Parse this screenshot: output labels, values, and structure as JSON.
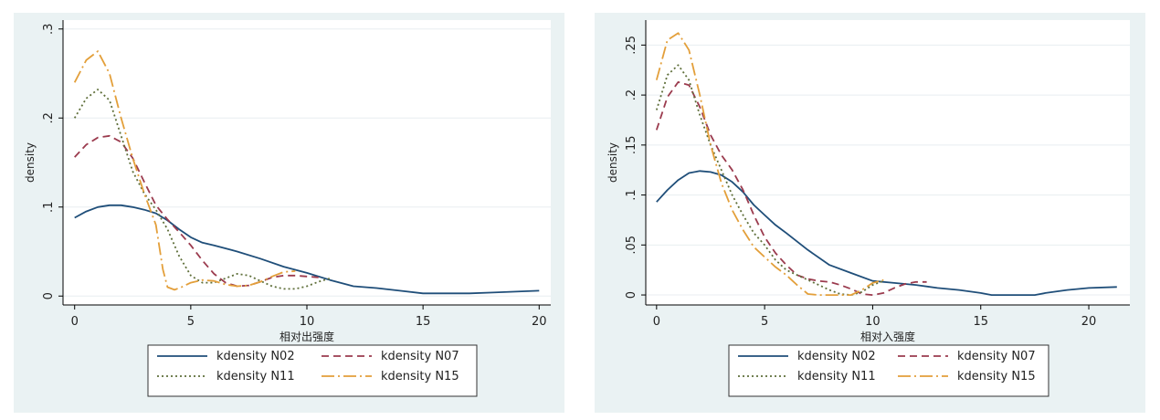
{
  "chart_data": [
    {
      "type": "line",
      "title": "",
      "xlabel": "相对出强度",
      "ylabel": "density",
      "xlim": [
        -0.5,
        20.5
      ],
      "ylim": [
        -0.01,
        0.31
      ],
      "x_ticks": [
        {
          "value": 0,
          "label": "0"
        },
        {
          "value": 5,
          "label": "5"
        },
        {
          "value": 10,
          "label": "10"
        },
        {
          "value": 15,
          "label": "15"
        },
        {
          "value": 20,
          "label": "20"
        }
      ],
      "y_ticks": [
        {
          "value": 0,
          "label": "0"
        },
        {
          "value": 0.1,
          "label": ".1"
        },
        {
          "value": 0.2,
          "label": ".2"
        },
        {
          "value": 0.3,
          "label": ".3"
        }
      ],
      "grid": true,
      "legend_position": "bottom",
      "series": [
        {
          "name": "kdensity N02",
          "color": "#1f4e79",
          "dash": "",
          "x": [
            0,
            0.5,
            1,
            1.5,
            2,
            2.5,
            3,
            3.5,
            4,
            4.5,
            5,
            5.5,
            6,
            7,
            8,
            9,
            10,
            11,
            12,
            13,
            14,
            15,
            16,
            17,
            18,
            19,
            20
          ],
          "y": [
            0.088,
            0.095,
            0.1,
            0.102,
            0.102,
            0.1,
            0.097,
            0.093,
            0.085,
            0.075,
            0.066,
            0.06,
            0.057,
            0.05,
            0.042,
            0.033,
            0.026,
            0.018,
            0.011,
            0.009,
            0.006,
            0.003,
            0.003,
            0.003,
            0.004,
            0.005,
            0.006
          ]
        },
        {
          "name": "kdensity N07",
          "color": "#9b3b4e",
          "dash": "8,5",
          "x": [
            0,
            0.5,
            1,
            1.5,
            2,
            2.5,
            3,
            3.5,
            4,
            4.5,
            5,
            5.5,
            6,
            6.5,
            7,
            7.5,
            8,
            8.5,
            9,
            9.5,
            10,
            10.5
          ],
          "y": [
            0.156,
            0.17,
            0.178,
            0.18,
            0.173,
            0.155,
            0.128,
            0.102,
            0.086,
            0.072,
            0.057,
            0.04,
            0.025,
            0.015,
            0.011,
            0.012,
            0.016,
            0.021,
            0.023,
            0.023,
            0.022,
            0.021
          ]
        },
        {
          "name": "kdensity N11",
          "color": "#5f6f3a",
          "dash": "2,3",
          "x": [
            0,
            0.5,
            1,
            1.5,
            2,
            2.5,
            3,
            3.5,
            4,
            4.5,
            5,
            5.5,
            6,
            6.5,
            7,
            7.5,
            8,
            8.5,
            9,
            9.5,
            10,
            10.5,
            11
          ],
          "y": [
            0.2,
            0.222,
            0.232,
            0.22,
            0.18,
            0.14,
            0.115,
            0.097,
            0.075,
            0.045,
            0.023,
            0.015,
            0.015,
            0.02,
            0.025,
            0.023,
            0.017,
            0.011,
            0.008,
            0.008,
            0.011,
            0.016,
            0.02
          ]
        },
        {
          "name": "kdensity N15",
          "color": "#e39f3a",
          "dash": "14,4,2,4",
          "x": [
            0,
            0.5,
            1,
            1.5,
            2,
            2.5,
            3,
            3.5,
            3.8,
            4,
            4.3,
            4.6,
            5,
            5.5,
            6,
            6.5,
            7,
            7.5,
            8,
            8.5,
            9,
            9.5
          ],
          "y": [
            0.24,
            0.265,
            0.275,
            0.25,
            0.2,
            0.155,
            0.115,
            0.08,
            0.03,
            0.01,
            0.007,
            0.01,
            0.015,
            0.018,
            0.017,
            0.013,
            0.011,
            0.012,
            0.016,
            0.022,
            0.027,
            0.028
          ]
        }
      ]
    },
    {
      "type": "line",
      "title": "",
      "xlabel": "相对入强度",
      "ylabel": "density",
      "xlim": [
        -0.5,
        21.9
      ],
      "ylim": [
        -0.01,
        0.275
      ],
      "x_ticks": [
        {
          "value": 0,
          "label": "0"
        },
        {
          "value": 5,
          "label": "5"
        },
        {
          "value": 10,
          "label": "10"
        },
        {
          "value": 15,
          "label": "15"
        },
        {
          "value": 20,
          "label": "20"
        }
      ],
      "y_ticks": [
        {
          "value": 0,
          "label": "0"
        },
        {
          "value": 0.05,
          "label": ".05"
        },
        {
          "value": 0.1,
          "label": ".1"
        },
        {
          "value": 0.15,
          "label": ".15"
        },
        {
          "value": 0.2,
          "label": ".2"
        },
        {
          "value": 0.25,
          "label": ".25"
        }
      ],
      "grid": true,
      "legend_position": "bottom",
      "series": [
        {
          "name": "kdensity N02",
          "color": "#1f4e79",
          "dash": "",
          "x": [
            0,
            0.5,
            1,
            1.5,
            2,
            2.5,
            3,
            3.5,
            4,
            4.5,
            5,
            5.5,
            6,
            7,
            8,
            9,
            10,
            11,
            12,
            13,
            14,
            15,
            15.5,
            16,
            17,
            17.5,
            18,
            19,
            20,
            21.3
          ],
          "y": [
            0.093,
            0.105,
            0.115,
            0.122,
            0.124,
            0.123,
            0.12,
            0.113,
            0.103,
            0.09,
            0.08,
            0.07,
            0.062,
            0.045,
            0.03,
            0.022,
            0.014,
            0.012,
            0.01,
            0.007,
            0.005,
            0.002,
            0,
            0,
            0,
            0,
            0.002,
            0.005,
            0.007,
            0.008
          ]
        },
        {
          "name": "kdensity N07",
          "color": "#9b3b4e",
          "dash": "8,5",
          "x": [
            0,
            0.5,
            1,
            1.5,
            2,
            2.5,
            3,
            3.5,
            4,
            4.5,
            5,
            5.5,
            6,
            6.5,
            7,
            7.5,
            8,
            8.5,
            9,
            9.5,
            10,
            10.5,
            11,
            11.5,
            12,
            12.5
          ],
          "y": [
            0.165,
            0.198,
            0.213,
            0.21,
            0.188,
            0.16,
            0.14,
            0.125,
            0.105,
            0.08,
            0.058,
            0.042,
            0.03,
            0.02,
            0.016,
            0.014,
            0.013,
            0.01,
            0.006,
            0.001,
            0,
            0.002,
            0.007,
            0.011,
            0.013,
            0.013
          ]
        },
        {
          "name": "kdensity N11",
          "color": "#5f6f3a",
          "dash": "2,3",
          "x": [
            0,
            0.5,
            1,
            1.5,
            2,
            2.5,
            3,
            3.5,
            4,
            4.5,
            5,
            5.5,
            6,
            6.5,
            7,
            7.5,
            8,
            8.5,
            9,
            9.5,
            10,
            10.5
          ],
          "y": [
            0.185,
            0.22,
            0.23,
            0.215,
            0.18,
            0.15,
            0.125,
            0.1,
            0.08,
            0.062,
            0.05,
            0.035,
            0.025,
            0.02,
            0.015,
            0.01,
            0.005,
            0.001,
            0,
            0.003,
            0.01,
            0.014
          ]
        },
        {
          "name": "kdensity N15",
          "color": "#e39f3a",
          "dash": "14,4,2,4",
          "x": [
            0,
            0.5,
            1,
            1.5,
            2,
            2.5,
            3,
            3.5,
            4,
            4.5,
            5,
            5.5,
            6,
            6.5,
            7,
            7.5,
            8,
            8.5,
            9,
            9.5,
            10,
            10.5
          ],
          "y": [
            0.215,
            0.255,
            0.262,
            0.245,
            0.2,
            0.15,
            0.112,
            0.085,
            0.065,
            0.048,
            0.038,
            0.028,
            0.02,
            0.01,
            0.001,
            0,
            0,
            0,
            0,
            0.005,
            0.012,
            0.015
          ]
        }
      ]
    }
  ]
}
